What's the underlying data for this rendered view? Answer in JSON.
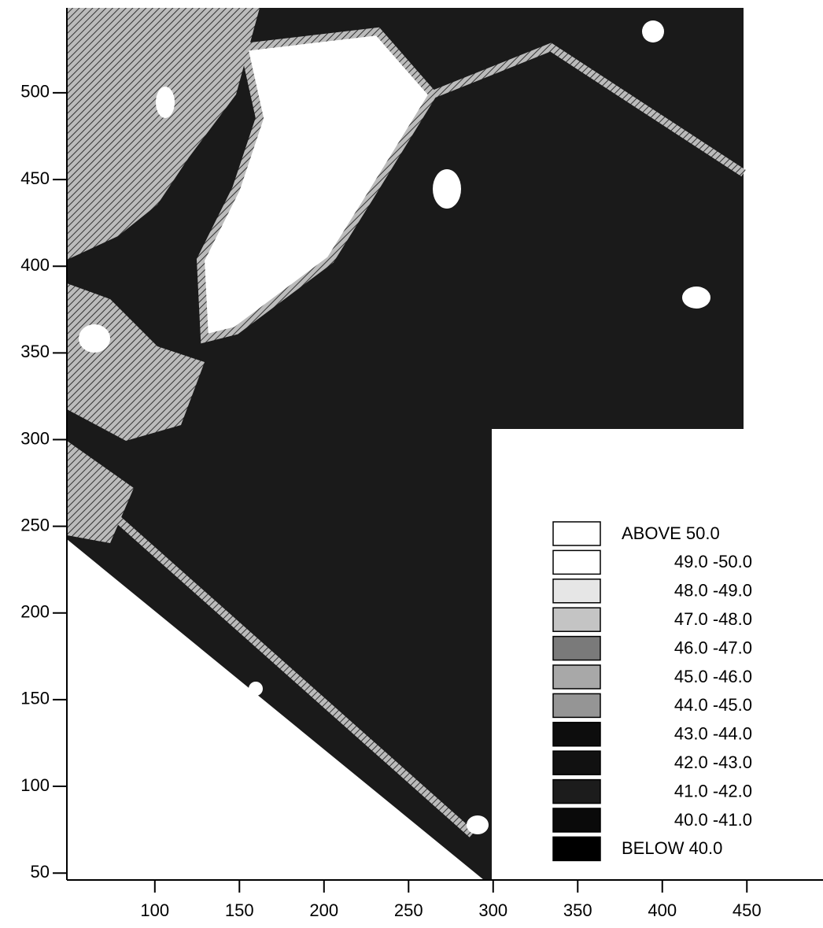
{
  "chart_data": {
    "type": "contour",
    "xlim": [
      48,
      495
    ],
    "xticks": [
      100,
      150,
      200,
      250,
      300,
      350,
      400,
      450
    ],
    "ylim": [
      46,
      549
    ],
    "yticks": [
      50,
      100,
      150,
      200,
      250,
      300,
      350,
      400,
      450,
      500
    ],
    "levels": [
      {
        "label": "ABOVE  50.0",
        "color": "#ffffff"
      },
      {
        "label": "49.0 -50.0",
        "color": "#ffffff"
      },
      {
        "label": "48.0 -49.0",
        "color": "#e6e6e6"
      },
      {
        "label": "47.0 -48.0",
        "color": "#c4c4c4"
      },
      {
        "label": "46.0 -47.0",
        "color": "#7a7a7a"
      },
      {
        "label": "45.0 -46.0",
        "color": "#a8a8a8"
      },
      {
        "label": "44.0 -45.0",
        "color": "#959595"
      },
      {
        "label": "43.0 -44.0",
        "color": "#0d0d0d"
      },
      {
        "label": "42.0 -43.0",
        "color": "#111111"
      },
      {
        "label": "41.0 -42.0",
        "color": "#1c1c1c"
      },
      {
        "label": "40.0 -41.0",
        "color": "#0a0a0a"
      },
      {
        "label": "BELOW  40.0",
        "color": "#000000"
      }
    ]
  }
}
